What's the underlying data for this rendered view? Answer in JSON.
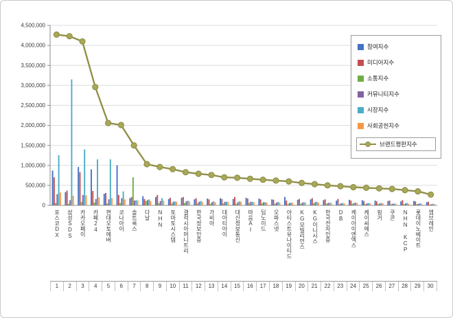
{
  "chart_data": {
    "type": "bar",
    "title": "",
    "grid": true,
    "legend_position": "top-right",
    "categories": [
      "포스코DX",
      "삼성SDS",
      "카카오페이",
      "카페24",
      "현대오토에버",
      "코나아이",
      "솔트룩스",
      "다날",
      "NHN",
      "토마토시스템",
      "갤럭시아머니트리",
      "한국정보인증",
      "가비아",
      "대아티아이",
      "대신정보통신",
      "마음AI",
      "딥노이드",
      "오파스넷",
      "아티스트유나이티드",
      "KG모빌리언스",
      "KG이니시스",
      "한국전자인증",
      "DB",
      "케이아이엔엑스",
      "케이씨에스",
      "핑거",
      "쿠콘",
      "NHN KCP",
      "롯데이노베이트",
      "엠브레인"
    ],
    "ranks": [
      "1",
      "2",
      "3",
      "4",
      "5",
      "6",
      "7",
      "8",
      "9",
      "10",
      "11",
      "12",
      "13",
      "14",
      "15",
      "16",
      "17",
      "18",
      "19",
      "20",
      "21",
      "22",
      "23",
      "24",
      "25",
      "26",
      "27",
      "28",
      "29",
      "30"
    ],
    "y_axis": {
      "min": 0,
      "max": 4500000,
      "tick_step": 500000,
      "tick_labels": [
        "0",
        "500,000",
        "1,000,000",
        "1,500,000",
        "2,000,000",
        "2,500,000",
        "3,000,000",
        "3,500,000",
        "4,000,000",
        "4,500,000"
      ]
    },
    "series": [
      {
        "id": "participation-index",
        "name": "참여지수",
        "type": "bar",
        "color": "#4472c4",
        "values": [
          870000,
          330000,
          960000,
          900000,
          290000,
          1000000,
          180000,
          230000,
          210000,
          160000,
          190000,
          150000,
          170000,
          180000,
          160000,
          190000,
          170000,
          150000,
          210000,
          140000,
          150000,
          130000,
          120000,
          140000,
          130000,
          120000,
          110000,
          100000,
          110000,
          80000
        ]
      },
      {
        "id": "media-index",
        "name": "미디어지수",
        "type": "bar",
        "color": "#c0504d",
        "values": [
          700000,
          370000,
          830000,
          360000,
          310000,
          260000,
          210000,
          160000,
          260000,
          190000,
          210000,
          180000,
          150000,
          160000,
          210000,
          170000,
          150000,
          140000,
          120000,
          160000,
          180000,
          150000,
          160000,
          120000,
          110000,
          100000,
          120000,
          130000,
          100000,
          90000
        ]
      },
      {
        "id": "communication-index",
        "name": "소통지수",
        "type": "bar",
        "color": "#70ad47",
        "values": [
          60000,
          40000,
          90000,
          70000,
          50000,
          60000,
          700000,
          110000,
          60000,
          50000,
          60000,
          50000,
          40000,
          50000,
          40000,
          60000,
          50000,
          40000,
          30000,
          40000,
          50000,
          40000,
          30000,
          40000,
          30000,
          30000,
          30000,
          30000,
          30000,
          20000
        ]
      },
      {
        "id": "community-index",
        "name": "커뮤니티지수",
        "type": "bar",
        "color": "#8064a2",
        "values": [
          280000,
          130000,
          260000,
          160000,
          150000,
          180000,
          120000,
          130000,
          110000,
          90000,
          100000,
          90000,
          80000,
          90000,
          80000,
          90000,
          80000,
          70000,
          60000,
          70000,
          80000,
          60000,
          50000,
          60000,
          50000,
          50000,
          40000,
          50000,
          40000,
          30000
        ]
      },
      {
        "id": "market-index",
        "name": "시장지수",
        "type": "bar",
        "color": "#4bacc6",
        "values": [
          1250000,
          3150000,
          1400000,
          1150000,
          1150000,
          350000,
          130000,
          150000,
          180000,
          100000,
          120000,
          110000,
          100000,
          90000,
          100000,
          90000,
          80000,
          90000,
          70000,
          80000,
          90000,
          70000,
          60000,
          70000,
          60000,
          60000,
          50000,
          60000,
          50000,
          40000
        ]
      },
      {
        "id": "social-contribution-index",
        "name": "사회공헌지수",
        "type": "bar",
        "color": "#f79646",
        "values": [
          320000,
          240000,
          250000,
          200000,
          180000,
          150000,
          120000,
          110000,
          120000,
          90000,
          100000,
          90000,
          80000,
          90000,
          90000,
          80000,
          70000,
          70000,
          60000,
          70000,
          70000,
          60000,
          50000,
          60000,
          50000,
          50000,
          40000,
          40000,
          40000,
          30000
        ]
      },
      {
        "id": "brand-reputation-index",
        "name": "브랜드평판지수",
        "type": "line",
        "color": "#90904a",
        "marker_fill": "#a8a858",
        "values": [
          4270000,
          4230000,
          4100000,
          2960000,
          2060000,
          2010000,
          1500000,
          1030000,
          960000,
          905000,
          830000,
          790000,
          760000,
          700000,
          690000,
          665000,
          640000,
          620000,
          600000,
          560000,
          530000,
          500000,
          480000,
          455000,
          440000,
          425000,
          410000,
          380000,
          350000,
          270000
        ]
      }
    ]
  }
}
